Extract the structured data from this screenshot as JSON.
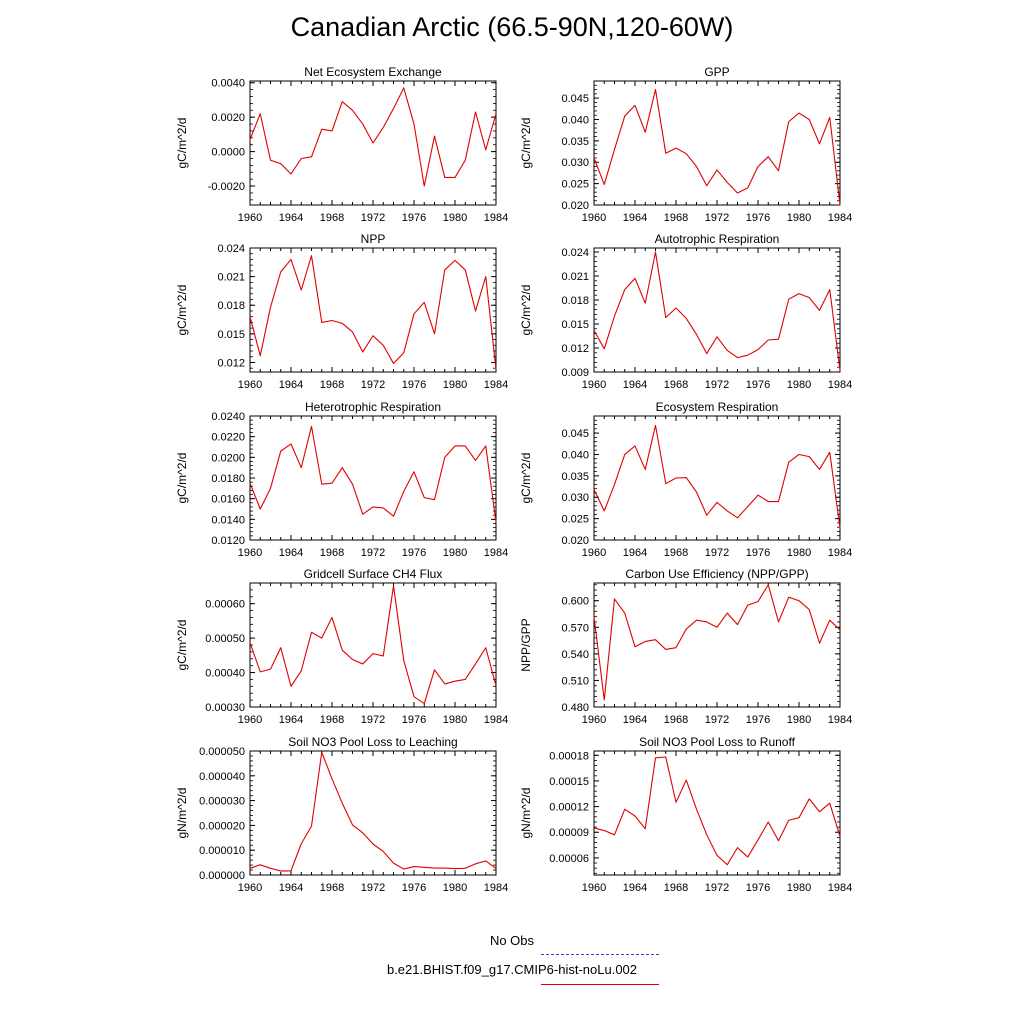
{
  "title": "Canadian Arctic (66.5-90N,120-60W)",
  "legend": {
    "obs_label": "No Obs",
    "obs_color": "#3b3bd6",
    "case_label": "b.e21.BHIST.f09_g17.CMIP6-hist-noLu.002",
    "case_color": "#e00000"
  },
  "chart_data": [
    {
      "type": "line",
      "title": "Net Ecosystem Exchange",
      "ylabel": "gC/m^2/d",
      "xlim": [
        1960,
        1984
      ],
      "ylim": [
        -0.0031,
        0.0041
      ],
      "xticks": [
        "1960",
        "1964",
        "1968",
        "1972",
        "1976",
        "1980",
        "1984"
      ],
      "yticks": [
        "-0.0020",
        "0.0000",
        "0.0020",
        "0.0040"
      ],
      "series": [
        {
          "color": "#e00000",
          "x": [
            1960,
            1961,
            1962,
            1963,
            1964,
            1965,
            1966,
            1967,
            1968,
            1969,
            1970,
            1971,
            1972,
            1973,
            1974,
            1975,
            1976,
            1977,
            1978,
            1979,
            1980,
            1981,
            1982,
            1983,
            1984
          ],
          "values": [
            0.0007,
            0.0022,
            -0.0005,
            -0.0007,
            -0.0013,
            -0.0004,
            -0.0003,
            0.0013,
            0.0012,
            0.0029,
            0.0024,
            0.0016,
            0.0005,
            0.0014,
            0.0025,
            0.0037,
            0.0016,
            -0.002,
            0.0009,
            -0.0015,
            -0.0015,
            -0.0005,
            0.0023,
            0.0001,
            0.0022
          ]
        }
      ]
    },
    {
      "type": "line",
      "title": "GPP",
      "ylabel": "gC/m^2/d",
      "xlim": [
        1960,
        1984
      ],
      "ylim": [
        0.02,
        0.049
      ],
      "xticks": [
        "1960",
        "1964",
        "1968",
        "1972",
        "1976",
        "1980",
        "1984"
      ],
      "yticks": [
        "0.020",
        "0.025",
        "0.030",
        "0.035",
        "0.040",
        "0.045"
      ],
      "series": [
        {
          "color": "#e00000",
          "x": [
            1960,
            1961,
            1962,
            1963,
            1964,
            1965,
            1966,
            1967,
            1968,
            1969,
            1970,
            1971,
            1972,
            1973,
            1974,
            1975,
            1976,
            1977,
            1978,
            1979,
            1980,
            1981,
            1982,
            1983,
            1984
          ],
          "values": [
            0.031,
            0.0248,
            0.033,
            0.0408,
            0.0433,
            0.037,
            0.047,
            0.0321,
            0.0333,
            0.032,
            0.029,
            0.0245,
            0.0282,
            0.0253,
            0.0228,
            0.024,
            0.029,
            0.0313,
            0.028,
            0.0395,
            0.0415,
            0.04,
            0.0343,
            0.0405,
            0.02
          ]
        }
      ]
    },
    {
      "type": "line",
      "title": "NPP",
      "ylabel": "gC/m^2/d",
      "xlim": [
        1960,
        1984
      ],
      "ylim": [
        0.011,
        0.024
      ],
      "xticks": [
        "1960",
        "1964",
        "1968",
        "1972",
        "1976",
        "1980",
        "1984"
      ],
      "yticks": [
        "0.012",
        "0.015",
        "0.018",
        "0.021",
        "0.024"
      ],
      "series": [
        {
          "color": "#e00000",
          "x": [
            1960,
            1961,
            1962,
            1963,
            1964,
            1965,
            1966,
            1967,
            1968,
            1969,
            1970,
            1971,
            1972,
            1973,
            1974,
            1975,
            1976,
            1977,
            1978,
            1979,
            1980,
            1981,
            1982,
            1983,
            1984
          ],
          "values": [
            0.0168,
            0.0127,
            0.0178,
            0.0215,
            0.0228,
            0.0196,
            0.0232,
            0.0162,
            0.0164,
            0.0161,
            0.0152,
            0.0131,
            0.0148,
            0.0138,
            0.0119,
            0.013,
            0.0171,
            0.0183,
            0.015,
            0.0217,
            0.0227,
            0.0217,
            0.0174,
            0.021,
            0.0113
          ]
        }
      ]
    },
    {
      "type": "line",
      "title": "Autotrophic Respiration",
      "ylabel": "gC/m^2/d",
      "xlim": [
        1960,
        1984
      ],
      "ylim": [
        0.009,
        0.0245
      ],
      "xticks": [
        "1960",
        "1964",
        "1968",
        "1972",
        "1976",
        "1980",
        "1984"
      ],
      "yticks": [
        "0.009",
        "0.012",
        "0.015",
        "0.018",
        "0.021",
        "0.024"
      ],
      "series": [
        {
          "color": "#e00000",
          "x": [
            1960,
            1961,
            1962,
            1963,
            1964,
            1965,
            1966,
            1967,
            1968,
            1969,
            1970,
            1971,
            1972,
            1973,
            1974,
            1975,
            1976,
            1977,
            1978,
            1979,
            1980,
            1981,
            1982,
            1983,
            1984
          ],
          "values": [
            0.0142,
            0.0119,
            0.016,
            0.0193,
            0.0207,
            0.0176,
            0.024,
            0.0158,
            0.017,
            0.0157,
            0.0137,
            0.0113,
            0.0134,
            0.0117,
            0.0108,
            0.0111,
            0.0118,
            0.013,
            0.0131,
            0.0181,
            0.0188,
            0.0183,
            0.0167,
            0.0193,
            0.0092
          ]
        }
      ]
    },
    {
      "type": "line",
      "title": "Heterotrophic Respiration",
      "ylabel": "gC/m^2/d",
      "xlim": [
        1960,
        1984
      ],
      "ylim": [
        0.012,
        0.024
      ],
      "xticks": [
        "1960",
        "1964",
        "1968",
        "1972",
        "1976",
        "1980",
        "1984"
      ],
      "yticks": [
        "0.0120",
        "0.0140",
        "0.0160",
        "0.0180",
        "0.0200",
        "0.0220",
        "0.0240"
      ],
      "series": [
        {
          "color": "#e00000",
          "x": [
            1960,
            1961,
            1962,
            1963,
            1964,
            1965,
            1966,
            1967,
            1968,
            1969,
            1970,
            1971,
            1972,
            1973,
            1974,
            1975,
            1976,
            1977,
            1978,
            1979,
            1980,
            1981,
            1982,
            1983,
            1984
          ],
          "values": [
            0.0175,
            0.015,
            0.017,
            0.0206,
            0.0213,
            0.019,
            0.023,
            0.0174,
            0.0175,
            0.019,
            0.0174,
            0.0145,
            0.0152,
            0.0151,
            0.0143,
            0.0167,
            0.0186,
            0.0161,
            0.0159,
            0.02,
            0.0211,
            0.0211,
            0.0197,
            0.0211,
            0.0137
          ]
        }
      ]
    },
    {
      "type": "line",
      "title": "Ecosystem Respiration",
      "ylabel": "gC/m^2/d",
      "xlim": [
        1960,
        1984
      ],
      "ylim": [
        0.02,
        0.049
      ],
      "xticks": [
        "1960",
        "1964",
        "1968",
        "1972",
        "1976",
        "1980",
        "1984"
      ],
      "yticks": [
        "0.020",
        "0.025",
        "0.030",
        "0.035",
        "0.040",
        "0.045"
      ],
      "series": [
        {
          "color": "#e00000",
          "x": [
            1960,
            1961,
            1962,
            1963,
            1964,
            1965,
            1966,
            1967,
            1968,
            1969,
            1970,
            1971,
            1972,
            1973,
            1974,
            1975,
            1976,
            1977,
            1978,
            1979,
            1980,
            1981,
            1982,
            1983,
            1984
          ],
          "values": [
            0.0318,
            0.0268,
            0.033,
            0.04,
            0.042,
            0.0365,
            0.0468,
            0.0332,
            0.0345,
            0.0346,
            0.0312,
            0.0258,
            0.0288,
            0.0268,
            0.0252,
            0.0278,
            0.0305,
            0.029,
            0.029,
            0.0382,
            0.04,
            0.0395,
            0.0365,
            0.0405,
            0.0228
          ]
        }
      ]
    },
    {
      "type": "line",
      "title": "Gridcell Surface CH4 Flux",
      "ylabel": "gC/m^2/d",
      "xlim": [
        1960,
        1984
      ],
      "ylim": [
        0.0003,
        0.00066
      ],
      "xticks": [
        "1960",
        "1964",
        "1968",
        "1972",
        "1976",
        "1980",
        "1984"
      ],
      "yticks": [
        "0.00030",
        "0.00040",
        "0.00050",
        "0.00060"
      ],
      "series": [
        {
          "color": "#e00000",
          "x": [
            1960,
            1961,
            1962,
            1963,
            1964,
            1965,
            1966,
            1967,
            1968,
            1969,
            1970,
            1971,
            1972,
            1973,
            1974,
            1975,
            1976,
            1977,
            1978,
            1979,
            1980,
            1981,
            1982,
            1983,
            1984
          ],
          "values": [
            0.000487,
            0.000402,
            0.00041,
            0.000472,
            0.00036,
            0.000405,
            0.000517,
            0.0005,
            0.00056,
            0.000465,
            0.000438,
            0.000425,
            0.000455,
            0.000448,
            0.000652,
            0.000435,
            0.00033,
            0.00031,
            0.000408,
            0.000367,
            0.000375,
            0.00038,
            0.000425,
            0.000472,
            0.000362
          ]
        }
      ]
    },
    {
      "type": "line",
      "title": "Carbon Use Efficiency (NPP/GPP)",
      "ylabel": "NPP/GPP",
      "xlim": [
        1960,
        1984
      ],
      "ylim": [
        0.48,
        0.62
      ],
      "xticks": [
        "1960",
        "1964",
        "1968",
        "1972",
        "1976",
        "1980",
        "1984"
      ],
      "yticks": [
        "0.480",
        "0.510",
        "0.540",
        "0.570",
        "0.600"
      ],
      "series": [
        {
          "color": "#e00000",
          "x": [
            1960,
            1961,
            1962,
            1963,
            1964,
            1965,
            1966,
            1967,
            1968,
            1969,
            1970,
            1971,
            1972,
            1973,
            1974,
            1975,
            1976,
            1977,
            1978,
            1979,
            1980,
            1981,
            1982,
            1983,
            1984
          ],
          "values": [
            0.582,
            0.488,
            0.602,
            0.586,
            0.548,
            0.554,
            0.556,
            0.545,
            0.547,
            0.568,
            0.578,
            0.576,
            0.57,
            0.586,
            0.573,
            0.595,
            0.599,
            0.618,
            0.576,
            0.604,
            0.6,
            0.59,
            0.552,
            0.578,
            0.567
          ]
        }
      ]
    },
    {
      "type": "line",
      "title": "Soil NO3 Pool Loss to Leaching",
      "ylabel": "gN/m^2/d",
      "xlim": [
        1960,
        1984
      ],
      "ylim": [
        0.0,
        5e-05
      ],
      "xticks": [
        "1960",
        "1964",
        "1968",
        "1972",
        "1976",
        "1980",
        "1984"
      ],
      "yticks": [
        "0.000000",
        "0.000010",
        "0.000020",
        "0.000030",
        "0.000040",
        "0.000050"
      ],
      "series": [
        {
          "color": "#e00000",
          "x": [
            1960,
            1961,
            1962,
            1963,
            1964,
            1965,
            1966,
            1967,
            1968,
            1969,
            1970,
            1971,
            1972,
            1973,
            1974,
            1975,
            1976,
            1977,
            1978,
            1979,
            1980,
            1981,
            1982,
            1983,
            1984
          ],
          "values": [
            2.7e-06,
            4.1e-06,
            2.7e-06,
            1.6e-06,
            1.7e-06,
            1.26e-05,
            1.97e-05,
            4.95e-05,
            3.88e-05,
            2.9e-05,
            2.02e-05,
            1.7e-05,
            1.25e-05,
            9.5e-06,
            4.8e-06,
            2.4e-06,
            3.4e-06,
            3.1e-06,
            2.8e-06,
            2.8e-06,
            2.6e-06,
            2.7e-06,
            4.5e-06,
            5.7e-06,
            2.6e-06
          ]
        }
      ]
    },
    {
      "type": "line",
      "title": "Soil NO3 Pool Loss to Runoff",
      "ylabel": "gN/m^2/d",
      "xlim": [
        1960,
        1984
      ],
      "ylim": [
        4e-05,
        0.000185
      ],
      "xticks": [
        "1960",
        "1964",
        "1968",
        "1972",
        "1976",
        "1980",
        "1984"
      ],
      "yticks": [
        "0.00006",
        "0.00009",
        "0.00012",
        "0.00015",
        "0.00018"
      ],
      "series": [
        {
          "color": "#e00000",
          "x": [
            1960,
            1961,
            1962,
            1963,
            1964,
            1965,
            1966,
            1967,
            1968,
            1969,
            1970,
            1971,
            1972,
            1973,
            1974,
            1975,
            1976,
            1977,
            1978,
            1979,
            1980,
            1981,
            1982,
            1983,
            1984
          ],
          "values": [
            9.5e-05,
            9.2e-05,
            8.7e-05,
            0.000117,
            0.000109,
            9.4e-05,
            0.000177,
            0.000178,
            0.000125,
            0.000151,
            0.000117,
            8.7e-05,
            6.3e-05,
            5.2e-05,
            7.2e-05,
            6.1e-05,
            8.1e-05,
            0.000102,
            8e-05,
            0.000104,
            0.000107,
            0.000129,
            0.000114,
            0.000124,
            8.5e-05
          ]
        }
      ]
    }
  ]
}
